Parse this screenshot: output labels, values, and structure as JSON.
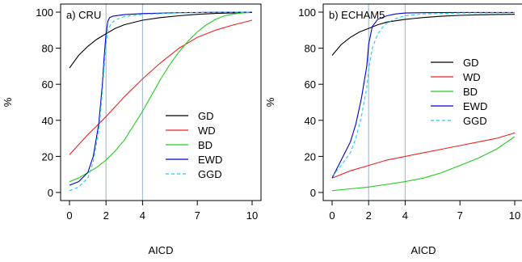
{
  "chart_data": [
    {
      "type": "line",
      "title": "a) CRU",
      "xlabel": "AICD",
      "ylabel": "%",
      "xticks": [
        0,
        2,
        4,
        7,
        10
      ],
      "yticks": [
        0,
        20,
        40,
        60,
        80,
        100
      ],
      "xlim": [
        0,
        10
      ],
      "ylim": [
        0,
        100
      ],
      "vlines": [
        2,
        4
      ],
      "legend_position": "lower-right",
      "series": [
        {
          "name": "GD",
          "color": "#000000",
          "dash": "",
          "x": [
            0,
            0.5,
            1,
            1.5,
            2,
            2.5,
            3,
            4,
            5,
            6,
            7,
            8,
            9,
            10
          ],
          "y": [
            69,
            76,
            81,
            85,
            88,
            91,
            93,
            95.5,
            97,
            98,
            98.8,
            99.3,
            99.6,
            99.8
          ]
        },
        {
          "name": "WD",
          "color": "#ee2222",
          "dash": "",
          "x": [
            0,
            1,
            2,
            3,
            4,
            5,
            6,
            7,
            8,
            9,
            10
          ],
          "y": [
            21,
            32,
            42,
            53,
            63,
            72,
            80,
            86,
            90,
            93,
            95.5
          ]
        },
        {
          "name": "BD",
          "color": "#22cc22",
          "dash": "",
          "x": [
            0,
            0.5,
            1,
            1.5,
            2,
            2.5,
            3,
            3.5,
            4,
            4.5,
            5,
            5.5,
            6,
            6.5,
            7,
            7.5,
            8,
            8.5,
            9,
            9.5,
            10
          ],
          "y": [
            6,
            8,
            11,
            14,
            18,
            23,
            29,
            37,
            45,
            54,
            63,
            71,
            78,
            84,
            89,
            93,
            96,
            98,
            99,
            99.6,
            100
          ]
        },
        {
          "name": "EWD",
          "color": "#0000cc",
          "dash": "",
          "x": [
            0,
            0.5,
            1,
            1.3,
            1.6,
            1.8,
            1.9,
            2,
            2.1,
            2.2,
            2.4,
            3,
            4,
            6,
            8,
            10
          ],
          "y": [
            4,
            6,
            11,
            20,
            38,
            60,
            75,
            88,
            95,
            97,
            97.8,
            98.6,
            99.2,
            99.7,
            99.9,
            100
          ]
        },
        {
          "name": "GGD",
          "color": "#22ccee",
          "dash": "4,3",
          "x": [
            0,
            0.5,
            1,
            1.3,
            1.6,
            1.8,
            1.9,
            2,
            2.1,
            2.3,
            2.6,
            3,
            4,
            6,
            8,
            10
          ],
          "y": [
            1,
            3,
            8,
            17,
            34,
            56,
            70,
            82,
            90,
            94,
            96,
            97.5,
            98.8,
            99.6,
            99.9,
            100
          ]
        }
      ]
    },
    {
      "type": "line",
      "title": "b) ECHAM5",
      "xlabel": "AICD",
      "ylabel": "%",
      "xticks": [
        0,
        2,
        4,
        7,
        10
      ],
      "yticks": [
        0,
        20,
        40,
        60,
        80,
        100
      ],
      "xlim": [
        0,
        10
      ],
      "ylim": [
        0,
        100
      ],
      "vlines": [
        2,
        4
      ],
      "legend_position": "right",
      "series": [
        {
          "name": "GD",
          "color": "#000000",
          "dash": "",
          "x": [
            0,
            0.5,
            1,
            1.5,
            2,
            2.5,
            3,
            4,
            5,
            6,
            7,
            8,
            9,
            10
          ],
          "y": [
            76,
            82,
            86,
            89,
            91,
            93,
            94.5,
            96,
            97,
            97.7,
            98.2,
            98.5,
            98.7,
            98.8
          ]
        },
        {
          "name": "WD",
          "color": "#ee2222",
          "dash": "",
          "x": [
            0,
            1,
            2,
            3,
            4,
            5,
            6,
            7,
            8,
            9,
            10
          ],
          "y": [
            8,
            12,
            15,
            18,
            20,
            22,
            24,
            26,
            28,
            30,
            33
          ]
        },
        {
          "name": "BD",
          "color": "#22cc22",
          "dash": "",
          "x": [
            0,
            1,
            2,
            3,
            4,
            5,
            6,
            7,
            8,
            9,
            10
          ],
          "y": [
            1,
            2,
            3,
            4.5,
            6,
            8,
            11,
            15,
            19,
            24,
            31
          ]
        },
        {
          "name": "EWD",
          "color": "#0000cc",
          "dash": "",
          "x": [
            0,
            0.5,
            1,
            1.3,
            1.6,
            1.9,
            2,
            2.2,
            2.5,
            3,
            3.5,
            4,
            5,
            7,
            10
          ],
          "y": [
            8,
            18,
            28,
            38,
            52,
            70,
            82,
            92,
            96,
            98,
            99,
            99.5,
            99.7,
            99.8,
            99.8
          ]
        },
        {
          "name": "GGD",
          "color": "#22ccee",
          "dash": "4,3",
          "x": [
            0,
            0.5,
            1,
            1.3,
            1.6,
            1.9,
            2,
            2.2,
            2.5,
            2.8,
            3,
            3.5,
            4,
            5,
            7,
            10
          ],
          "y": [
            9,
            15,
            22,
            30,
            42,
            58,
            68,
            80,
            88,
            92,
            94,
            96.5,
            98,
            99,
            99.5,
            99.7
          ]
        }
      ]
    }
  ]
}
